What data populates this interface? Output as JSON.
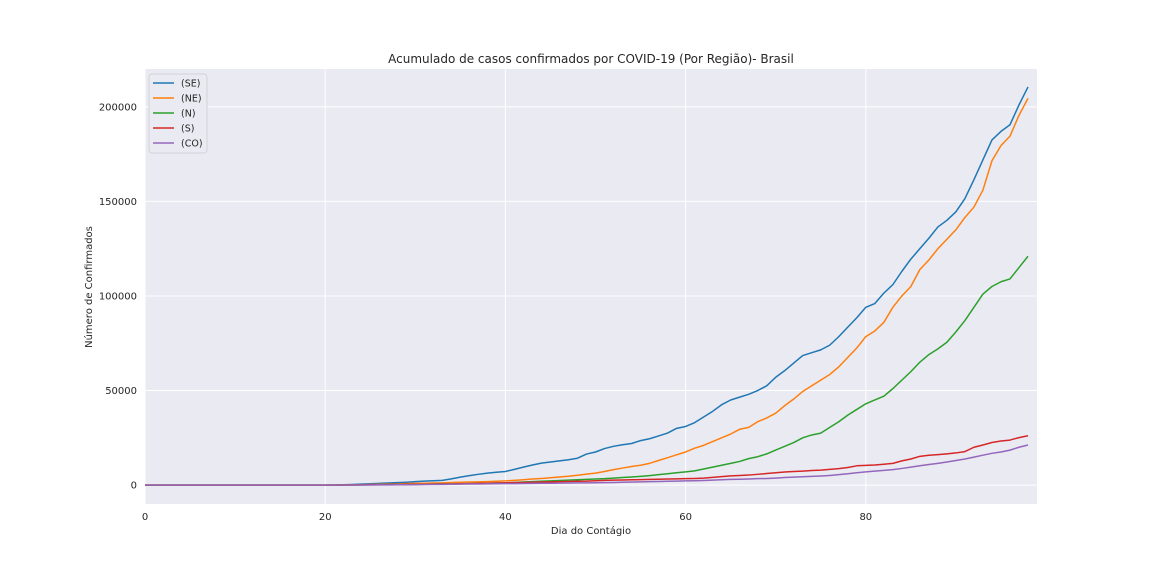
{
  "chart_data": {
    "type": "line",
    "title": "Acumulado de casos confirmados por COVID-19 (Por Região)- Brasil",
    "xlabel": "Dia do Contágio",
    "ylabel": "Número de Confirmados",
    "xlim": [
      0,
      99
    ],
    "ylim": [
      -10000,
      220000
    ],
    "xticks": [
      0,
      20,
      40,
      60,
      80
    ],
    "yticks": [
      0,
      50000,
      100000,
      150000,
      200000
    ],
    "ytick_labels": [
      "0",
      "50000",
      "100000",
      "150000",
      "200000"
    ],
    "grid": true,
    "legend_position": "upper-left",
    "x": [
      0,
      1,
      2,
      3,
      4,
      5,
      6,
      7,
      8,
      9,
      10,
      11,
      12,
      13,
      14,
      15,
      16,
      17,
      18,
      19,
      20,
      21,
      22,
      23,
      24,
      25,
      26,
      27,
      28,
      29,
      30,
      31,
      32,
      33,
      34,
      35,
      36,
      37,
      38,
      39,
      40,
      41,
      42,
      43,
      44,
      45,
      46,
      47,
      48,
      49,
      50,
      51,
      52,
      53,
      54,
      55,
      56,
      57,
      58,
      59,
      60,
      61,
      62,
      63,
      64,
      65,
      66,
      67,
      68,
      69,
      70,
      71,
      72,
      73,
      74,
      75,
      76,
      77,
      78,
      79,
      80,
      81,
      82,
      83,
      84,
      85,
      86,
      87,
      88,
      89,
      90,
      91,
      92,
      93,
      94,
      95,
      96,
      97,
      98
    ],
    "series": [
      {
        "name": "(SE)",
        "color": "#1f77b4",
        "values": [
          0,
          0,
          0,
          0,
          0,
          0,
          0,
          0,
          0,
          0,
          0,
          0,
          0,
          0,
          0,
          0,
          0,
          0,
          0,
          0,
          0,
          50,
          150,
          300,
          500,
          700,
          900,
          1100,
          1300,
          1500,
          1800,
          2100,
          2300,
          2500,
          3300,
          4200,
          5000,
          5700,
          6300,
          6800,
          7200,
          8300,
          9500,
          10600,
          11600,
          12200,
          12800,
          13400,
          14200,
          16400,
          17500,
          19300,
          20500,
          21300,
          22000,
          23500,
          24500,
          26000,
          27500,
          30000,
          31000,
          33000,
          36000,
          39000,
          42500,
          45000,
          46500,
          48000,
          50000,
          52500,
          57000,
          60500,
          64500,
          68500,
          70000,
          71500,
          74000,
          78500,
          83500,
          88500,
          94000,
          96000,
          101500,
          106000,
          113000,
          119500,
          125000,
          130500,
          136500,
          140000,
          144500,
          151500,
          161500,
          172000,
          182500,
          187000,
          190500,
          201000,
          210500
        ]
      },
      {
        "name": "(NE)",
        "color": "#ff7f0e",
        "values": [
          0,
          0,
          0,
          0,
          0,
          0,
          0,
          0,
          0,
          0,
          0,
          0,
          0,
          0,
          0,
          0,
          0,
          0,
          0,
          0,
          0,
          20,
          60,
          120,
          200,
          300,
          400,
          500,
          600,
          800,
          900,
          1000,
          1100,
          1200,
          1400,
          1500,
          1600,
          1700,
          1800,
          2000,
          2200,
          2500,
          2800,
          3200,
          3500,
          3900,
          4300,
          4700,
          5200,
          5800,
          6300,
          7200,
          8200,
          9000,
          9800,
          10500,
          11500,
          13000,
          14500,
          16000,
          17500,
          19500,
          21000,
          23000,
          25000,
          27000,
          29500,
          30500,
          33500,
          35500,
          38000,
          42000,
          45500,
          49500,
          52500,
          55500,
          58500,
          62500,
          67500,
          72500,
          78500,
          81500,
          86000,
          94000,
          100000,
          105000,
          114000,
          119000,
          125000,
          130000,
          135000,
          141500,
          147000,
          156000,
          171500,
          179500,
          184500,
          195500,
          204500
        ]
      },
      {
        "name": "(N)",
        "color": "#2ca02c",
        "values": [
          0,
          0,
          0,
          0,
          0,
          0,
          0,
          0,
          0,
          0,
          0,
          0,
          0,
          0,
          0,
          0,
          0,
          0,
          0,
          0,
          0,
          10,
          30,
          60,
          100,
          150,
          200,
          250,
          300,
          350,
          400,
          450,
          500,
          550,
          600,
          700,
          800,
          900,
          1000,
          1100,
          1200,
          1400,
          1600,
          1800,
          2000,
          2200,
          2400,
          2600,
          2800,
          3000,
          3200,
          3400,
          3700,
          4000,
          4300,
          4600,
          5000,
          5500,
          6000,
          6500,
          7000,
          7500,
          8500,
          9500,
          10500,
          11500,
          12500,
          14000,
          15000,
          16500,
          18500,
          20500,
          22500,
          25000,
          26500,
          27500,
          30500,
          33500,
          37000,
          40000,
          43000,
          45000,
          47000,
          51000,
          55500,
          60000,
          65000,
          69000,
          72000,
          75500,
          81000,
          87000,
          94000,
          101000,
          105000,
          107500,
          109000,
          115000,
          121000
        ]
      },
      {
        "name": "(S)",
        "color": "#d62728",
        "values": [
          0,
          0,
          0,
          0,
          0,
          0,
          0,
          0,
          0,
          0,
          0,
          0,
          0,
          0,
          0,
          0,
          0,
          0,
          0,
          0,
          0,
          10,
          30,
          60,
          100,
          150,
          200,
          250,
          300,
          350,
          400,
          450,
          500,
          550,
          600,
          700,
          800,
          900,
          1000,
          1100,
          1200,
          1300,
          1400,
          1500,
          1600,
          1700,
          1800,
          1900,
          2000,
          2100,
          2300,
          2500,
          2600,
          2700,
          2800,
          2900,
          3000,
          3100,
          3200,
          3300,
          3400,
          3500,
          3700,
          4100,
          4500,
          4900,
          5100,
          5300,
          5700,
          6100,
          6500,
          6900,
          7200,
          7400,
          7700,
          7900,
          8300,
          8700,
          9300,
          10200,
          10400,
          10600,
          11000,
          11500,
          12800,
          13800,
          15200,
          15800,
          16100,
          16500,
          17000,
          17700,
          20000,
          21200,
          22500,
          23300,
          23800,
          25100,
          26100
        ]
      },
      {
        "name": "(CO)",
        "color": "#9467bd",
        "values": [
          0,
          0,
          0,
          0,
          0,
          0,
          0,
          0,
          0,
          0,
          0,
          0,
          0,
          0,
          0,
          0,
          0,
          0,
          0,
          0,
          0,
          10,
          20,
          40,
          60,
          80,
          100,
          120,
          150,
          200,
          250,
          300,
          350,
          400,
          450,
          500,
          550,
          600,
          650,
          700,
          750,
          800,
          850,
          900,
          950,
          1000,
          1050,
          1100,
          1150,
          1200,
          1250,
          1300,
          1400,
          1500,
          1600,
          1700,
          1800,
          1900,
          2000,
          2100,
          2200,
          2300,
          2400,
          2600,
          2800,
          3000,
          3100,
          3200,
          3400,
          3500,
          3700,
          4000,
          4200,
          4400,
          4600,
          4800,
          5100,
          5500,
          6000,
          6500,
          7000,
          7400,
          7800,
          8200,
          8800,
          9500,
          10200,
          10900,
          11500,
          12200,
          13000,
          13800,
          14800,
          15800,
          16800,
          17500,
          18500,
          20000,
          21200
        ]
      }
    ]
  }
}
